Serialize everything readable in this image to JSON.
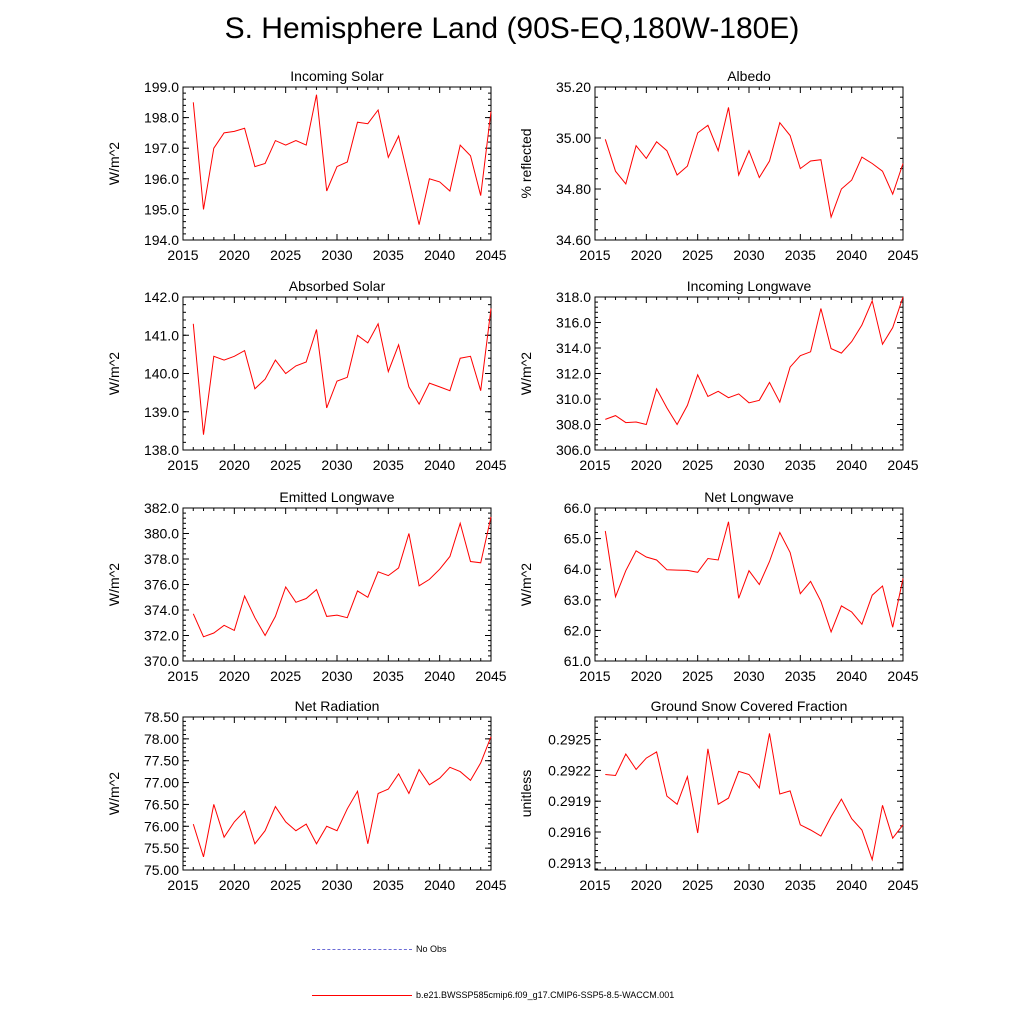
{
  "title": "S. Hemisphere Land (90S-EQ,180W-180E)",
  "legend": {
    "obs_label": "No Obs",
    "obs_color": "#6b6bd6",
    "model_label": "b.e21.BWSSP585cmip6.f09_g17.CMIP6-SSP5-8.5-WACCM.001",
    "model_color": "#ff0000"
  },
  "chart_data": [
    {
      "type": "line",
      "title": "Incoming Solar",
      "ylabel": "W/m^2",
      "xlim": [
        2015,
        2045
      ],
      "ylim": [
        194.0,
        199.0
      ],
      "yticks": [
        "194.0",
        "195.0",
        "196.0",
        "197.0",
        "198.0",
        "199.0"
      ],
      "xticks": [
        "2015",
        "2020",
        "2025",
        "2030",
        "2035",
        "2040",
        "2045"
      ],
      "x": [
        2016,
        2017,
        2018,
        2019,
        2020,
        2021,
        2022,
        2023,
        2024,
        2025,
        2026,
        2027,
        2028,
        2029,
        2030,
        2031,
        2032,
        2033,
        2034,
        2035,
        2036,
        2037,
        2038,
        2039,
        2040,
        2041,
        2042,
        2043,
        2044,
        2045
      ],
      "values": [
        198.5,
        195.0,
        197.0,
        197.5,
        197.55,
        197.65,
        196.4,
        196.5,
        197.25,
        197.1,
        197.25,
        197.1,
        198.75,
        195.6,
        196.4,
        196.55,
        197.85,
        197.8,
        198.25,
        196.7,
        197.4,
        195.95,
        194.5,
        196.0,
        195.9,
        195.6,
        197.1,
        196.75,
        195.45,
        198.2
      ]
    },
    {
      "type": "line",
      "title": "Albedo",
      "ylabel": "% reflected",
      "xlim": [
        2015,
        2045
      ],
      "ylim": [
        34.6,
        35.2
      ],
      "yticks": [
        "34.60",
        "34.80",
        "35.00",
        "35.20"
      ],
      "xticks": [
        "2015",
        "2020",
        "2025",
        "2030",
        "2035",
        "2040",
        "2045"
      ],
      "x": [
        2016,
        2017,
        2018,
        2019,
        2020,
        2021,
        2022,
        2023,
        2024,
        2025,
        2026,
        2027,
        2028,
        2029,
        2030,
        2031,
        2032,
        2033,
        2034,
        2035,
        2036,
        2037,
        2038,
        2039,
        2040,
        2041,
        2042,
        2043,
        2044,
        2045
      ],
      "values": [
        34.995,
        34.87,
        34.82,
        34.97,
        34.92,
        34.985,
        34.95,
        34.855,
        34.89,
        35.02,
        35.05,
        34.95,
        35.12,
        34.855,
        34.95,
        34.845,
        34.91,
        35.06,
        35.01,
        34.88,
        34.91,
        34.915,
        34.69,
        34.8,
        34.835,
        34.925,
        34.9,
        34.87,
        34.78,
        34.9
      ]
    },
    {
      "type": "line",
      "title": "Absorbed Solar",
      "ylabel": "W/m^2",
      "xlim": [
        2015,
        2045
      ],
      "ylim": [
        138.0,
        142.0
      ],
      "yticks": [
        "138.0",
        "139.0",
        "140.0",
        "141.0",
        "142.0"
      ],
      "xticks": [
        "2015",
        "2020",
        "2025",
        "2030",
        "2035",
        "2040",
        "2045"
      ],
      "x": [
        2016,
        2017,
        2018,
        2019,
        2020,
        2021,
        2022,
        2023,
        2024,
        2025,
        2026,
        2027,
        2028,
        2029,
        2030,
        2031,
        2032,
        2033,
        2034,
        2035,
        2036,
        2037,
        2038,
        2039,
        2040,
        2041,
        2042,
        2043,
        2044,
        2045
      ],
      "values": [
        141.3,
        138.4,
        140.45,
        140.35,
        140.45,
        140.6,
        139.6,
        139.85,
        140.35,
        140.0,
        140.2,
        140.3,
        141.15,
        139.1,
        139.8,
        139.9,
        141.0,
        140.8,
        141.3,
        140.05,
        140.75,
        139.65,
        139.2,
        139.75,
        139.65,
        139.55,
        140.4,
        140.45,
        139.55,
        141.7
      ]
    },
    {
      "type": "line",
      "title": "Incoming Longwave",
      "ylabel": "W/m^2",
      "xlim": [
        2015,
        2045
      ],
      "ylim": [
        306.0,
        318.0
      ],
      "yticks": [
        "306.0",
        "308.0",
        "310.0",
        "312.0",
        "314.0",
        "316.0",
        "318.0"
      ],
      "xticks": [
        "2015",
        "2020",
        "2025",
        "2030",
        "2035",
        "2040",
        "2045"
      ],
      "x": [
        2016,
        2017,
        2018,
        2019,
        2020,
        2021,
        2022,
        2023,
        2024,
        2025,
        2026,
        2027,
        2028,
        2029,
        2030,
        2031,
        2032,
        2033,
        2034,
        2035,
        2036,
        2037,
        2038,
        2039,
        2040,
        2041,
        2042,
        2043,
        2044,
        2045
      ],
      "values": [
        308.4,
        308.7,
        308.15,
        308.2,
        308.0,
        310.8,
        309.3,
        308.0,
        309.5,
        311.9,
        310.2,
        310.6,
        310.1,
        310.4,
        309.7,
        309.9,
        311.3,
        309.75,
        312.5,
        313.4,
        313.7,
        317.1,
        313.95,
        313.6,
        314.5,
        315.8,
        317.7,
        314.3,
        315.6,
        318.0
      ]
    },
    {
      "type": "line",
      "title": "Emitted Longwave",
      "ylabel": "W/m^2",
      "xlim": [
        2015,
        2045
      ],
      "ylim": [
        370.0,
        382.0
      ],
      "yticks": [
        "370.0",
        "372.0",
        "374.0",
        "376.0",
        "378.0",
        "380.0",
        "382.0"
      ],
      "xticks": [
        "2015",
        "2020",
        "2025",
        "2030",
        "2035",
        "2040",
        "2045"
      ],
      "x": [
        2016,
        2017,
        2018,
        2019,
        2020,
        2021,
        2022,
        2023,
        2024,
        2025,
        2026,
        2027,
        2028,
        2029,
        2030,
        2031,
        2032,
        2033,
        2034,
        2035,
        2036,
        2037,
        2038,
        2039,
        2040,
        2041,
        2042,
        2043,
        2044,
        2045
      ],
      "values": [
        373.7,
        371.9,
        372.2,
        372.8,
        372.4,
        375.1,
        373.4,
        372.0,
        373.5,
        375.8,
        374.6,
        374.9,
        375.6,
        373.5,
        373.6,
        373.4,
        375.5,
        375.0,
        377.0,
        376.7,
        377.3,
        380.0,
        375.9,
        376.4,
        377.2,
        378.2,
        380.8,
        377.8,
        377.7,
        381.3
      ]
    },
    {
      "type": "line",
      "title": "Net Longwave",
      "ylabel": "W/m^2",
      "xlim": [
        2015,
        2045
      ],
      "ylim": [
        61.0,
        66.0
      ],
      "yticks": [
        "61.0",
        "62.0",
        "63.0",
        "64.0",
        "65.0",
        "66.0"
      ],
      "xticks": [
        "2015",
        "2020",
        "2025",
        "2030",
        "2035",
        "2040",
        "2045"
      ],
      "x": [
        2016,
        2017,
        2018,
        2019,
        2020,
        2021,
        2022,
        2023,
        2024,
        2025,
        2026,
        2027,
        2028,
        2029,
        2030,
        2031,
        2032,
        2033,
        2034,
        2035,
        2036,
        2037,
        2038,
        2039,
        2040,
        2041,
        2042,
        2043,
        2044,
        2045
      ],
      "values": [
        65.25,
        63.1,
        63.95,
        64.6,
        64.4,
        64.3,
        63.98,
        63.97,
        63.96,
        63.9,
        64.35,
        64.3,
        65.55,
        63.05,
        63.95,
        63.5,
        64.25,
        65.2,
        64.55,
        63.2,
        63.6,
        62.95,
        61.95,
        62.8,
        62.6,
        62.2,
        63.15,
        63.45,
        62.1,
        63.7
      ]
    },
    {
      "type": "line",
      "title": "Net Radiation",
      "ylabel": "W/m^2",
      "xlim": [
        2015,
        2045
      ],
      "ylim": [
        75.0,
        78.5
      ],
      "yticks": [
        "75.00",
        "75.50",
        "76.00",
        "76.50",
        "77.00",
        "77.50",
        "78.00",
        "78.50"
      ],
      "xticks": [
        "2015",
        "2020",
        "2025",
        "2030",
        "2035",
        "2040",
        "2045"
      ],
      "x": [
        2016,
        2017,
        2018,
        2019,
        2020,
        2021,
        2022,
        2023,
        2024,
        2025,
        2026,
        2027,
        2028,
        2029,
        2030,
        2031,
        2032,
        2033,
        2034,
        2035,
        2036,
        2037,
        2038,
        2039,
        2040,
        2041,
        2042,
        2043,
        2044,
        2045
      ],
      "values": [
        76.05,
        75.3,
        76.5,
        75.75,
        76.1,
        76.35,
        75.6,
        75.9,
        76.45,
        76.1,
        75.9,
        76.05,
        75.6,
        76.0,
        75.9,
        76.4,
        76.8,
        75.6,
        76.75,
        76.85,
        77.2,
        76.75,
        77.3,
        76.95,
        77.1,
        77.35,
        77.25,
        77.05,
        77.45,
        78.05
      ]
    },
    {
      "type": "line",
      "title": "Ground Snow Covered Fraction",
      "ylabel": "unitless",
      "xlim": [
        2015,
        2045
      ],
      "ylim": [
        0.29123,
        0.29272
      ],
      "yticks": [
        "0.2913",
        "0.2916",
        "0.2919",
        "0.2922",
        "0.2925"
      ],
      "ytick_values": [
        0.2913,
        0.2916,
        0.2919,
        0.2922,
        0.2925
      ],
      "xticks": [
        "2015",
        "2020",
        "2025",
        "2030",
        "2035",
        "2040",
        "2045"
      ],
      "x": [
        2016,
        2017,
        2018,
        2019,
        2020,
        2021,
        2022,
        2023,
        2024,
        2025,
        2026,
        2027,
        2028,
        2029,
        2030,
        2031,
        2032,
        2033,
        2034,
        2035,
        2036,
        2037,
        2038,
        2039,
        2040,
        2041,
        2042,
        2043,
        2044,
        2045
      ],
      "values": [
        0.29216,
        0.29215,
        0.29236,
        0.29221,
        0.29232,
        0.29238,
        0.29195,
        0.29187,
        0.29214,
        0.29159,
        0.29241,
        0.29187,
        0.29193,
        0.29219,
        0.29216,
        0.29203,
        0.29256,
        0.29197,
        0.292,
        0.29167,
        0.29162,
        0.29156,
        0.29175,
        0.29192,
        0.29173,
        0.29162,
        0.29133,
        0.29186,
        0.29154,
        0.29167
      ]
    }
  ]
}
